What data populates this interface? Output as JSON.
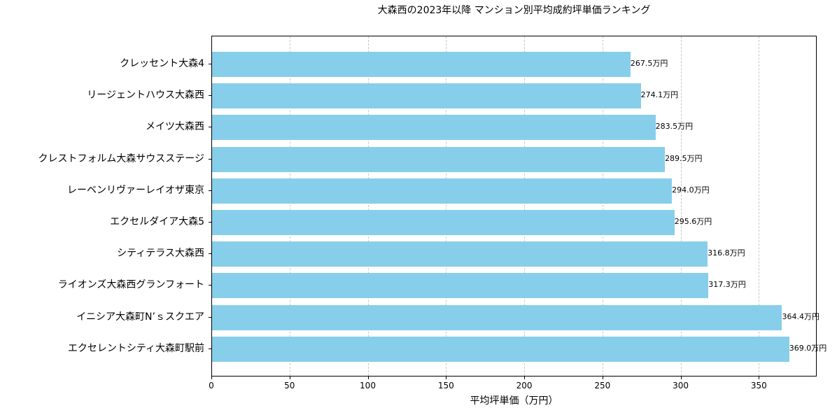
{
  "chart_data": {
    "type": "bar",
    "orientation": "horizontal",
    "title": "大森西の2023年以降 マンション別平均成約坪単価ランキング",
    "xlabel": "平均坪単価（万円）",
    "ylabel": "",
    "xlim": [
      0,
      387
    ],
    "xticks": [
      0,
      50,
      100,
      150,
      200,
      250,
      300,
      350
    ],
    "grid": {
      "x": true,
      "y": false,
      "style": "dashed"
    },
    "bar_color": "#87ceeb",
    "value_suffix": "万円",
    "categories": [
      "クレッセント大森4",
      "リージェントハウス大森西",
      "メイツ大森西",
      "クレストフォルム大森サウスステージ",
      "レーベンリヴァーレイオザ東京",
      "エクセルダイア大森5",
      "シティテラス大森西",
      "ライオンズ大森西グランフォート",
      "イニシア大森町N’ｓスクエア",
      "エクセレントシティ大森町駅前"
    ],
    "values": [
      267.5,
      274.1,
      283.5,
      289.5,
      294.0,
      295.6,
      316.8,
      317.3,
      364.4,
      369.0
    ],
    "value_labels": [
      "267.5万円",
      "274.1万円",
      "283.5万円",
      "289.5万円",
      "294.0万円",
      "295.6万円",
      "316.8万円",
      "317.3万円",
      "364.4万円",
      "369.0万円"
    ]
  }
}
